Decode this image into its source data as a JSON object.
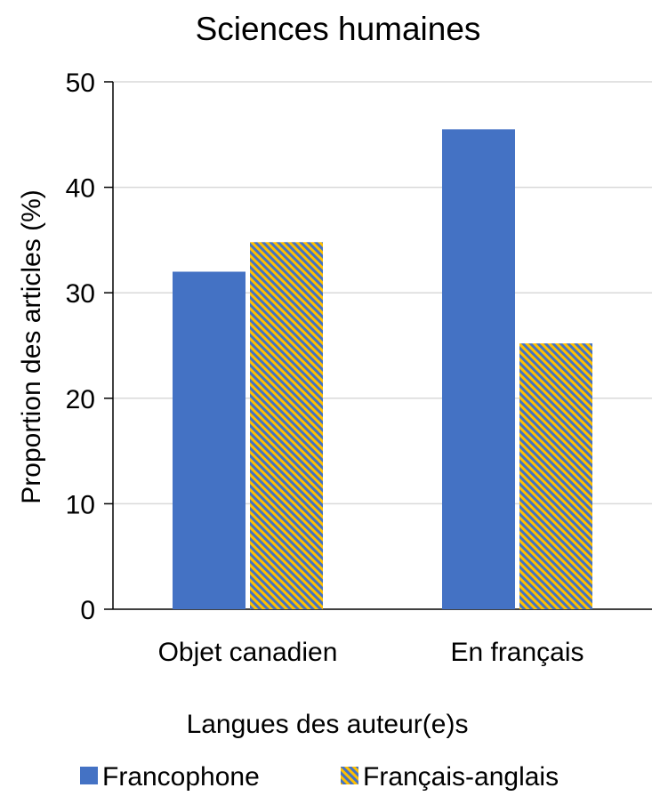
{
  "chart_data": {
    "type": "bar",
    "title": "Sciences humaines",
    "xlabel": "Langues des auteur(e)s",
    "ylabel": "Proportion des articles (%)",
    "categories": [
      "Objet canadien",
      "En français"
    ],
    "series": [
      {
        "name": "Francophone",
        "values": [
          32,
          45.5
        ],
        "color": "#4472C4",
        "pattern": "solid"
      },
      {
        "name": "Français-anglais",
        "values": [
          34.8,
          25.2
        ],
        "color": "#4472C4",
        "pattern_color": "#FFC000",
        "pattern": "diagonal-stripes"
      }
    ],
    "ylim": [
      0,
      50
    ],
    "yticks": [
      "0",
      "10",
      "20",
      "30",
      "40",
      "50"
    ],
    "grid": true,
    "legend_position": "bottom"
  }
}
